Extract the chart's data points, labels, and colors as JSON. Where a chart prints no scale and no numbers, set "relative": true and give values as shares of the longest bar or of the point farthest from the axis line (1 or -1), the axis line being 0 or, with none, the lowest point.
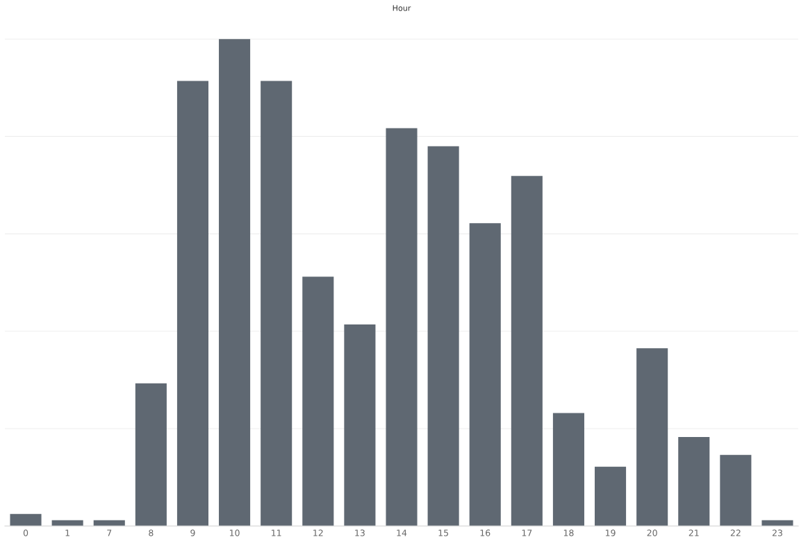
{
  "chart_data": {
    "type": "bar",
    "title": "Hour",
    "relative": true,
    "grid": "y",
    "color": "#5f6872",
    "categories": [
      "0",
      "1",
      "7",
      "8",
      "9",
      "10",
      "11",
      "12",
      "13",
      "14",
      "15",
      "16",
      "17",
      "18",
      "19",
      "20",
      "21",
      "22",
      "23"
    ],
    "values": [
      0.025,
      0.012,
      0.012,
      0.293,
      0.914,
      1,
      0.914,
      0.512,
      0.414,
      0.817,
      0.78,
      0.622,
      0.719,
      0.232,
      0.122,
      0.365,
      0.183,
      0.146,
      0.012
    ]
  }
}
